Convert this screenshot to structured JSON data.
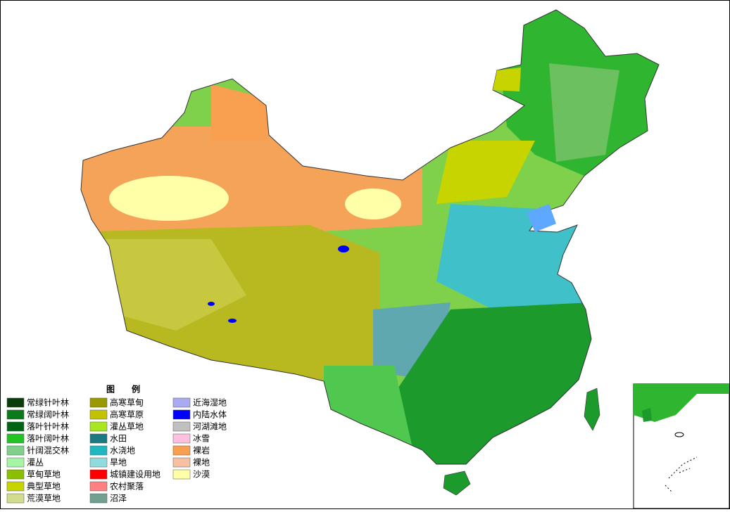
{
  "legend": {
    "title": "图　　例",
    "items": [
      {
        "label": "常绿针叶林",
        "color": "#0b3d0b"
      },
      {
        "label": "常绿阔叶林",
        "color": "#0b7a1a"
      },
      {
        "label": "落叶针叶林",
        "color": "#006414"
      },
      {
        "label": "落叶阔叶林",
        "color": "#22c322"
      },
      {
        "label": "针阔混交林",
        "color": "#80d08c"
      },
      {
        "label": "灌丛",
        "color": "#a6f5a6"
      },
      {
        "label": "草甸草地",
        "color": "#8cbf00"
      },
      {
        "label": "典型草地",
        "color": "#c8d400"
      },
      {
        "label": "荒漠草地",
        "color": "#d2dc8c"
      },
      {
        "label": "高寒草甸",
        "color": "#9a9a00"
      },
      {
        "label": "高寒草原",
        "color": "#c2c200"
      },
      {
        "label": "灌丛草地",
        "color": "#a8e620"
      },
      {
        "label": "水田",
        "color": "#1a7a80"
      },
      {
        "label": "水浇地",
        "color": "#20b8c0"
      },
      {
        "label": "旱地",
        "color": "#90dcdc"
      },
      {
        "label": "城镇建设用地",
        "color": "#ff0000"
      },
      {
        "label": "农村聚落",
        "color": "#ff8080"
      },
      {
        "label": "沼泽",
        "color": "#72a090"
      },
      {
        "label": "近海湿地",
        "color": "#aaaaf0"
      },
      {
        "label": "内陆水体",
        "color": "#0000ff"
      },
      {
        "label": "河湖滩地",
        "color": "#c0c0c0"
      },
      {
        "label": "冰雪",
        "color": "#ffc0e0"
      },
      {
        "label": "裸岩",
        "color": "#f8a050"
      },
      {
        "label": "裸地",
        "color": "#f8c0a0"
      },
      {
        "label": "沙漠",
        "color": "#ffffa8"
      }
    ]
  }
}
